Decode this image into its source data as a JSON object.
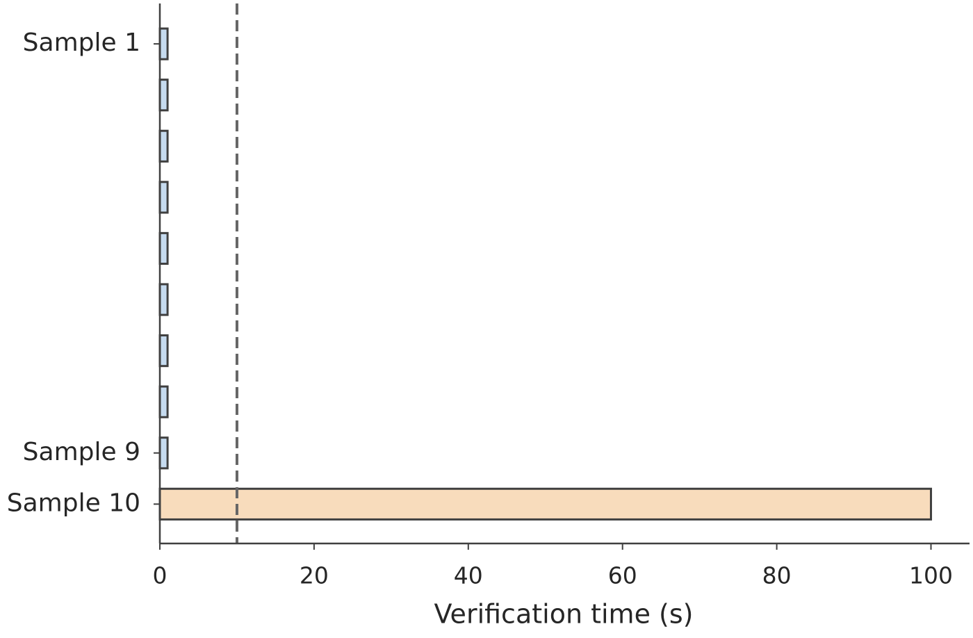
{
  "chart_data": {
    "type": "barh",
    "x_label": "Verification time (s)",
    "categories": [
      "Sample 1",
      null,
      null,
      null,
      null,
      null,
      null,
      null,
      "Sample 9",
      "Sample 10"
    ],
    "values": [
      1,
      1,
      1,
      1,
      1,
      1,
      1,
      1,
      1,
      100
    ],
    "colors": [
      "#c6dbef",
      "#c6dbef",
      "#c6dbef",
      "#c6dbef",
      "#c6dbef",
      "#c6dbef",
      "#c6dbef",
      "#c6dbef",
      "#c6dbef",
      "#f8dcbc"
    ],
    "reference_line": 10,
    "xlim": [
      0,
      105
    ],
    "xticks": [
      0,
      20,
      40,
      60,
      80,
      100
    ]
  }
}
